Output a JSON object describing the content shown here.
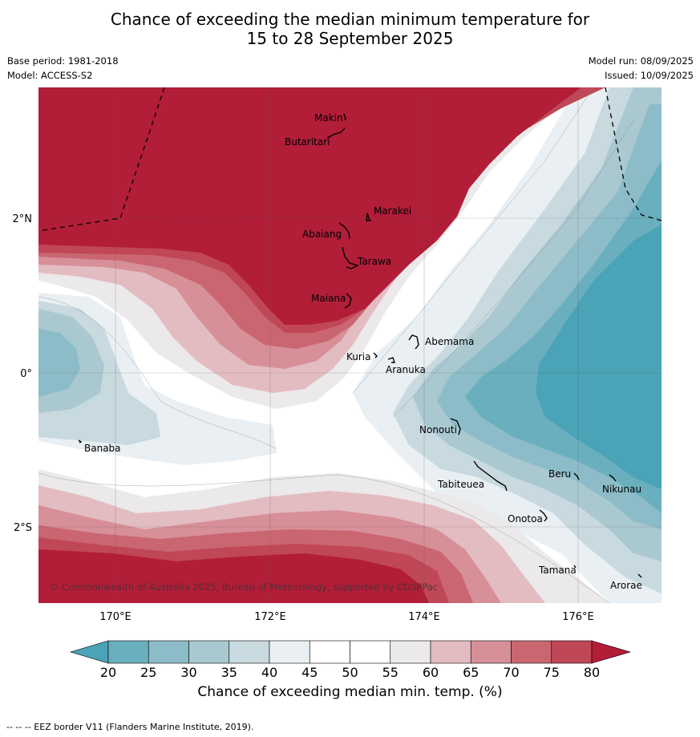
{
  "title_line1": "Chance of exceeding the median minimum temperature for",
  "title_line2": "15 to 28 September 2025",
  "base_period": "Base period: 1981-2018",
  "model": "Model: ACCESS-S2",
  "model_run": "Model run: 08/09/2025",
  "issued": "Issued: 10/09/2025",
  "copyright": "© Commonwealth of Australia 2025, Bureau of Meteorology, supported by COSPPac",
  "lon_ticks": [
    "170°E",
    "172°E",
    "174°E",
    "176°E"
  ],
  "lat_ticks": [
    "2°N",
    "0°",
    "2°S"
  ],
  "islands": [
    {
      "name": "Makin"
    },
    {
      "name": "Butaritari"
    },
    {
      "name": "Marakei"
    },
    {
      "name": "Abaiang"
    },
    {
      "name": "Tarawa"
    },
    {
      "name": "Maiana"
    },
    {
      "name": "Abemama"
    },
    {
      "name": "Kuria"
    },
    {
      "name": "Aranuka"
    },
    {
      "name": "Nonouti"
    },
    {
      "name": "Banaba"
    },
    {
      "name": "Beru"
    },
    {
      "name": "Nikunau"
    },
    {
      "name": "Tabiteuea"
    },
    {
      "name": "Onotoa"
    },
    {
      "name": "Tamana"
    },
    {
      "name": "Arorae"
    }
  ],
  "colorbar": {
    "ticks": [
      "20",
      "25",
      "30",
      "35",
      "40",
      "45",
      "50",
      "55",
      "60",
      "65",
      "70",
      "75",
      "80"
    ],
    "label": "Chance of exceeding median min. temp. (%)",
    "colors": {
      "below20": "#4aa3b6",
      "c20_25": "#6aafbe",
      "c25_30": "#8cbcc8",
      "c30_35": "#a9c8d0",
      "c35_40": "#c8d9df",
      "c40_45": "#e9eff2",
      "c45_50": "#ffffff",
      "c50_55": "#ffffff",
      "c55_60": "#ebe9ea",
      "c60_65": "#e3bcc2",
      "c65_70": "#d78f98",
      "c70_75": "#ca6671",
      "c75_80": "#c04757",
      "above80": "#b21d38"
    }
  },
  "footer": "--  --  -- EEZ border V11 (Flanders Marine Institute, 2019)."
}
